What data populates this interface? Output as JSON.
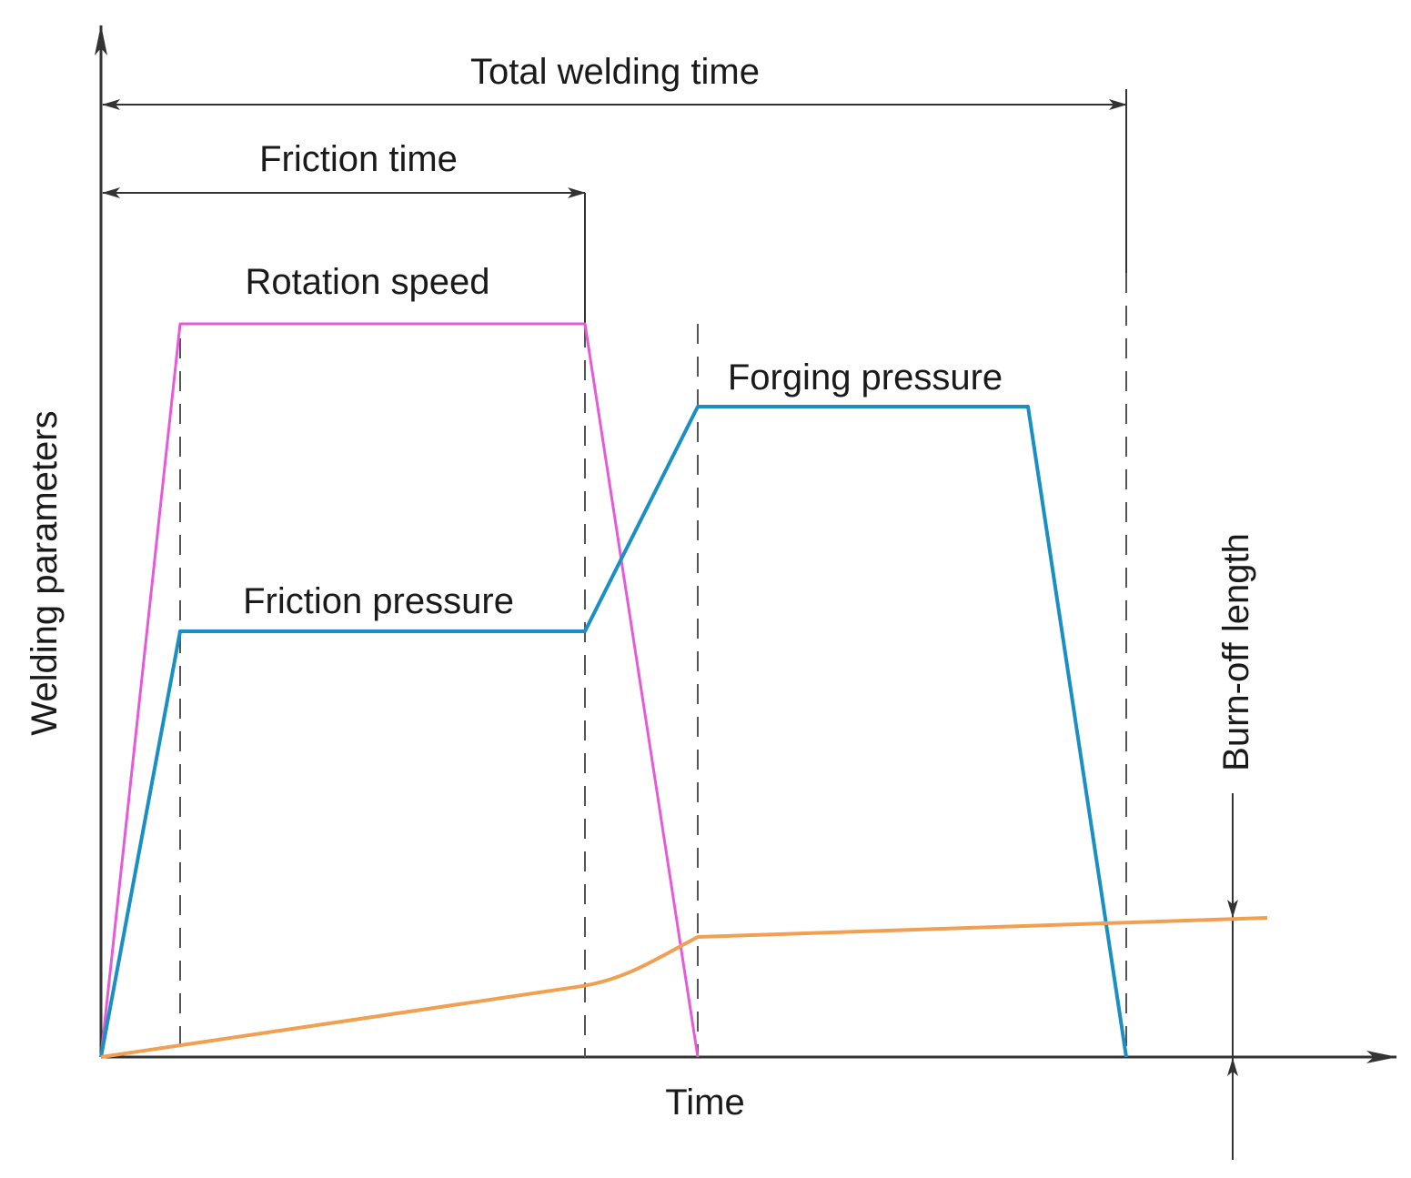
{
  "labels": {
    "total_welding_time": "Total welding time",
    "friction_time": "Friction time",
    "rotation_speed": "Rotation speed",
    "forging_pressure": "Forging pressure",
    "friction_pressure": "Friction pressure",
    "y_axis": "Welding parameters",
    "x_axis": "Time",
    "burn_off_length": "Burn-off length"
  },
  "colors": {
    "rotation_speed": "#e65ad8",
    "pressure": "#1a8fc4",
    "burn_off": "#f0a050",
    "axis": "#333333",
    "text": "#1a1a1a"
  }
}
